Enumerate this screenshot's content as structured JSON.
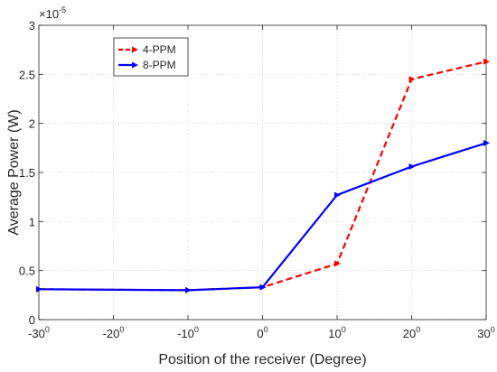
{
  "chart_data": {
    "type": "line",
    "title": "",
    "xlabel": "Position of the receiver (Degree)",
    "ylabel": "Average Power (W)",
    "xlim": [
      -30,
      30
    ],
    "ylim": [
      0,
      3
    ],
    "y_multiplier_label": "×10",
    "y_multiplier_exp": "-5",
    "x_ticks": [
      -30,
      -20,
      -10,
      0,
      10,
      20,
      30
    ],
    "x_tick_labels": [
      {
        "base": "-30",
        "sup": "0"
      },
      {
        "base": "-20",
        "sup": "0"
      },
      {
        "base": "-10",
        "sup": "0"
      },
      {
        "base": "0",
        "sup": "0"
      },
      {
        "base": "10",
        "sup": "0"
      },
      {
        "base": "20",
        "sup": "0"
      },
      {
        "base": "30",
        "sup": "0"
      }
    ],
    "y_ticks": [
      0,
      0.5,
      1,
      1.5,
      2,
      2.5,
      3
    ],
    "y_tick_labels": [
      "0",
      "0.5",
      "1",
      "1.5",
      "2",
      "2.5",
      "3"
    ],
    "grid": true,
    "legend_position": "top-left",
    "series": [
      {
        "name": "4-PPM",
        "color": "#ff0000",
        "dash": true,
        "x": [
          -30,
          -10,
          0,
          10,
          20,
          30
        ],
        "y": [
          0.31,
          0.3,
          0.33,
          0.57,
          2.45,
          2.63
        ]
      },
      {
        "name": "8-PPM",
        "color": "#0000ff",
        "dash": false,
        "x": [
          -30,
          -10,
          0,
          10,
          20,
          30
        ],
        "y": [
          0.31,
          0.3,
          0.33,
          1.27,
          1.56,
          1.8
        ]
      }
    ]
  }
}
